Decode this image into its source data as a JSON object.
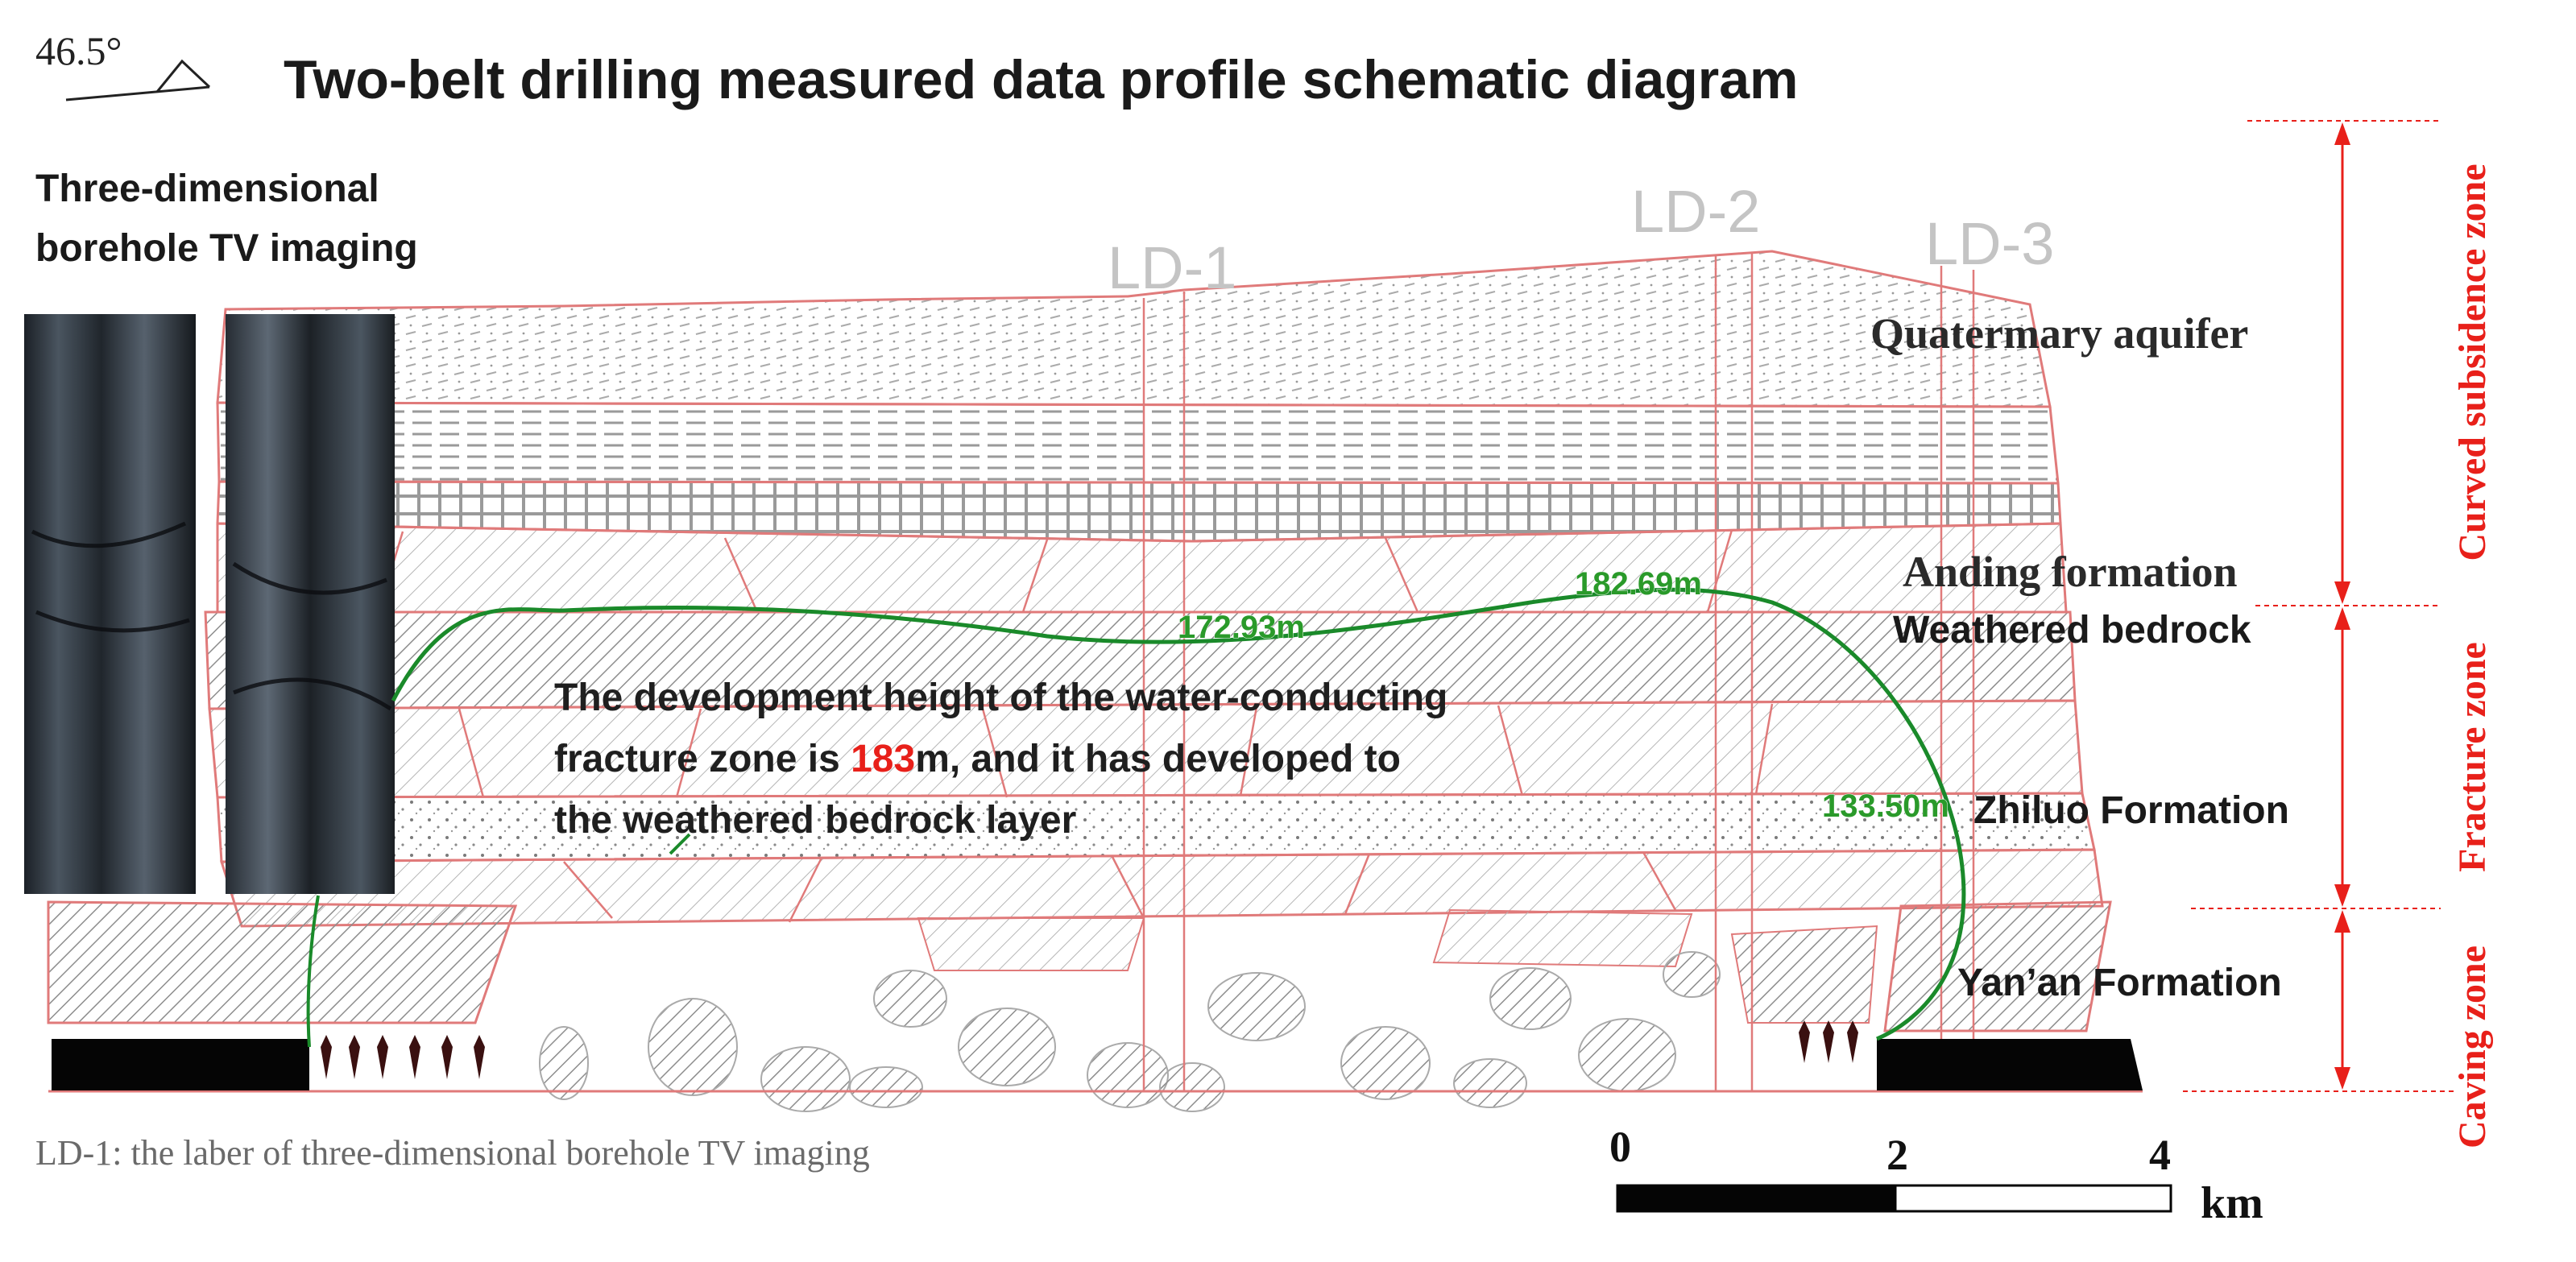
{
  "title": "Two-belt drilling measured data profile schematic diagram",
  "dip_angle": "46.5°",
  "imaging_label": [
    "Three-dimensional",
    "borehole TV imaging"
  ],
  "boreholes": [
    "LD-1",
    "LD-2",
    "LD-3"
  ],
  "strata": {
    "quaternary": "Quatermary aquifer",
    "anding": "Anding formation",
    "weathered": "Weathered bedrock",
    "zhiluo": "Zhiluo Formation",
    "yanan": "Yan’an Formation"
  },
  "measurements": {
    "m1": "172.93m",
    "m2": "182.69m",
    "m3": "133.50m"
  },
  "annotation": {
    "line1": "The development height of the water-conducting",
    "line2_pre": "fracture zone is ",
    "value": "183",
    "line2_post": "m, and it has developed to",
    "line3": "the weathered bedrock layer"
  },
  "zones": {
    "curved": "Curved subsidence zone",
    "fracture": "Fracture zone",
    "caving": "Caving zone"
  },
  "footnote": "LD-1: the laber of three-dimensional borehole TV imaging",
  "scale": {
    "ticks": [
      "0",
      "2",
      "4"
    ],
    "unit": "km"
  },
  "colors": {
    "title": "#111111",
    "strata_line": "#e07a7a",
    "zone_red": "#e8201a",
    "fracture_curve": "#1a8a2a",
    "measure_green": "#2a9a2a",
    "hatch": "#9a9a9a"
  }
}
